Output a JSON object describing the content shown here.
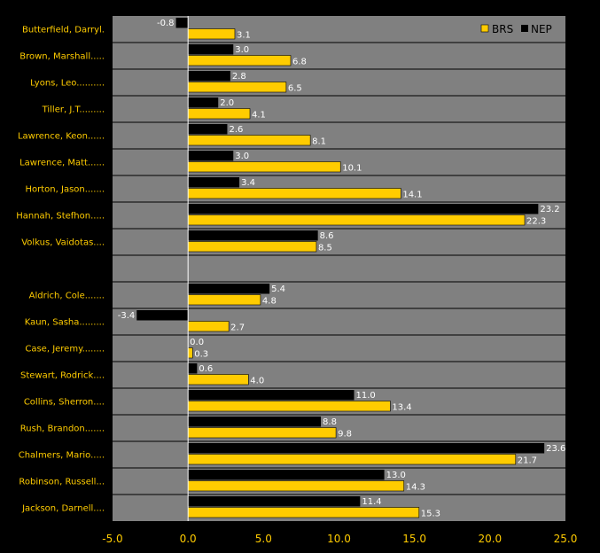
{
  "chart_data": {
    "type": "bar",
    "orientation": "horizontal",
    "title": "",
    "xlabel": "",
    "ylabel": "",
    "xlim": [
      -5,
      25
    ],
    "xticks": [
      "-5.0",
      "0.0",
      "5.0",
      "10.0",
      "15.0",
      "20.0",
      "25.0"
    ],
    "legend_position": "top-right",
    "grid": false,
    "colors": {
      "background": "#000000",
      "plot_area": "#808080",
      "BRS": "#ffcc00",
      "NEP": "#000000",
      "category_text": "#ffcc00",
      "tick_text": "#ffcc00",
      "value_text": "#ffffff"
    },
    "categories": [
      "Butterfield, Darryl.",
      "Brown, Marshall.....",
      "Lyons, Leo..........",
      "Tiller, J.T.........",
      "Lawrence, Keon......",
      "Lawrence, Matt......",
      "Horton, Jason.......",
      "Hannah, Stefhon.....",
      "Volkus, Vaidotas....",
      "",
      "Aldrich, Cole.......",
      "Kaun, Sasha.........",
      "Case, Jeremy........",
      "Stewart, Rodrick....",
      "Collins, Sherron....",
      "Rush, Brandon.......",
      "Chalmers, Mario.....",
      "Robinson, Russell...",
      "Jackson, Darnell...."
    ],
    "series": [
      {
        "name": "NEP",
        "values": [
          -0.8,
          3.0,
          2.8,
          2.0,
          2.6,
          3.0,
          3.4,
          23.2,
          8.6,
          null,
          5.4,
          -3.4,
          0.0,
          0.6,
          11.0,
          8.8,
          23.6,
          13.0,
          11.4
        ],
        "labels": [
          "-0.8",
          "3.0",
          "2.8",
          "2.0",
          "2.6",
          "3.0",
          "3.4",
          "23.2",
          "8.6",
          "",
          "5.4",
          "-3.4",
          "0.0",
          "0.6",
          "11.0",
          "8.8",
          "23.6",
          "13.0",
          "11.4"
        ]
      },
      {
        "name": "BRS",
        "values": [
          3.1,
          6.8,
          6.5,
          4.1,
          8.1,
          10.1,
          14.1,
          22.3,
          8.5,
          null,
          4.8,
          2.7,
          0.3,
          4.0,
          13.4,
          9.8,
          21.7,
          14.3,
          15.3
        ],
        "labels": [
          "3.1",
          "6.8",
          "6.5",
          "4.1",
          "8.1",
          "10.1",
          "14.1",
          "22.3",
          "8.5",
          "",
          "4.8",
          "2.7",
          "0.3",
          "4.0",
          "13.4",
          "9.8",
          "21.7",
          "14.3",
          "15.3"
        ]
      }
    ]
  }
}
